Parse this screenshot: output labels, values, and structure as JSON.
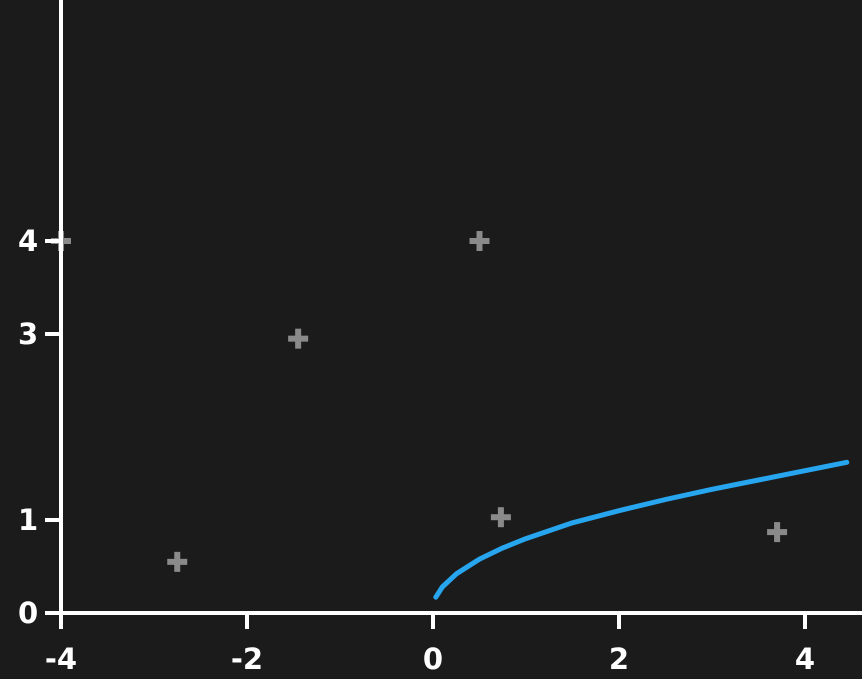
{
  "chart_data": {
    "type": "scatter",
    "title": "",
    "xlabel": "",
    "ylabel": "",
    "xlim": [
      -4,
      4.45
    ],
    "ylim": [
      0,
      4.1
    ],
    "grid": false,
    "x_ticks": [
      {
        "value": -4,
        "label": "-4"
      },
      {
        "value": -2,
        "label": "-2"
      },
      {
        "value": 0,
        "label": "0"
      },
      {
        "value": 2,
        "label": "2"
      },
      {
        "value": 4,
        "label": "4"
      }
    ],
    "y_ticks": [
      {
        "value": 0,
        "label": "0"
      },
      {
        "value": 1,
        "label": "1"
      },
      {
        "value": 3,
        "label": "3"
      },
      {
        "value": 4,
        "label": "4"
      }
    ],
    "series": [
      {
        "type": "scatter",
        "marker": "plus",
        "color": "#8a8a8a",
        "points": [
          {
            "x": -4.0,
            "y": 4.0
          },
          {
            "x": 0.5,
            "y": 4.0
          },
          {
            "x": -1.45,
            "y": 2.95
          },
          {
            "x": 0.73,
            "y": 1.03
          },
          {
            "x": 3.7,
            "y": 0.87
          },
          {
            "x": -2.75,
            "y": 0.55
          }
        ]
      },
      {
        "type": "line",
        "color": "#27a6ef",
        "points": [
          {
            "x": 0.03,
            "y": 0.17
          },
          {
            "x": 0.1,
            "y": 0.28
          },
          {
            "x": 0.25,
            "y": 0.42
          },
          {
            "x": 0.5,
            "y": 0.58
          },
          {
            "x": 0.75,
            "y": 0.7
          },
          {
            "x": 1.0,
            "y": 0.8
          },
          {
            "x": 1.5,
            "y": 0.97
          },
          {
            "x": 2.0,
            "y": 1.1
          },
          {
            "x": 2.5,
            "y": 1.22
          },
          {
            "x": 3.0,
            "y": 1.33
          },
          {
            "x": 3.5,
            "y": 1.43
          },
          {
            "x": 4.0,
            "y": 1.53
          },
          {
            "x": 4.45,
            "y": 1.62
          }
        ]
      }
    ]
  }
}
